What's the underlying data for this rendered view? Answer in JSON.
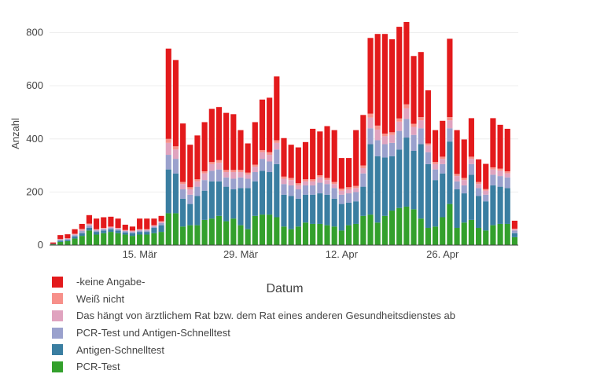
{
  "chart_data": {
    "type": "bar",
    "stacked": true,
    "xlabel": "Datum",
    "ylabel": "Anzahl",
    "ylim": [
      0,
      840
    ],
    "yticks": [
      0,
      200,
      400,
      600,
      800
    ],
    "xtick_labels": [
      {
        "index": 12,
        "label": "15. Mär"
      },
      {
        "index": 26,
        "label": "29. Mär"
      },
      {
        "index": 40,
        "label": "12. Apr"
      },
      {
        "index": 54,
        "label": "26. Apr"
      }
    ],
    "categories": [
      "2021-03-03",
      "2021-03-04",
      "2021-03-05",
      "2021-03-06",
      "2021-03-07",
      "2021-03-08",
      "2021-03-09",
      "2021-03-10",
      "2021-03-11",
      "2021-03-12",
      "2021-03-13",
      "2021-03-14",
      "2021-03-15",
      "2021-03-16",
      "2021-03-17",
      "2021-03-18",
      "2021-03-19",
      "2021-03-20",
      "2021-03-21",
      "2021-03-22",
      "2021-03-23",
      "2021-03-24",
      "2021-03-25",
      "2021-03-26",
      "2021-03-27",
      "2021-03-28",
      "2021-03-29",
      "2021-03-30",
      "2021-03-31",
      "2021-04-01",
      "2021-04-02",
      "2021-04-03",
      "2021-04-04",
      "2021-04-05",
      "2021-04-06",
      "2021-04-07",
      "2021-04-08",
      "2021-04-09",
      "2021-04-10",
      "2021-04-11",
      "2021-04-12",
      "2021-04-13",
      "2021-04-14",
      "2021-04-15",
      "2021-04-16",
      "2021-04-17",
      "2021-04-18",
      "2021-04-19",
      "2021-04-20",
      "2021-04-21",
      "2021-04-22",
      "2021-04-23",
      "2021-04-24",
      "2021-04-25",
      "2021-04-26",
      "2021-04-27",
      "2021-04-28",
      "2021-04-29",
      "2021-04-30",
      "2021-05-01",
      "2021-05-02",
      "2021-05-03",
      "2021-05-04",
      "2021-05-05",
      "2021-05-06"
    ],
    "series": [
      {
        "name": "PCR-Test",
        "color": "#33a02c",
        "values": [
          3,
          12,
          15,
          25,
          35,
          55,
          40,
          45,
          50,
          45,
          40,
          35,
          40,
          40,
          45,
          50,
          120,
          120,
          70,
          75,
          75,
          95,
          100,
          110,
          90,
          100,
          75,
          60,
          110,
          115,
          115,
          105,
          70,
          60,
          70,
          85,
          80,
          80,
          75,
          70,
          55,
          75,
          80,
          110,
          115,
          85,
          110,
          130,
          140,
          145,
          135,
          100,
          65,
          70,
          105,
          155,
          65,
          85,
          95,
          65,
          55,
          75,
          80,
          80,
          30
        ]
      },
      {
        "name": "Antigen-Schnelltest",
        "color": "#3a7ea1",
        "values": [
          2,
          5,
          5,
          8,
          10,
          10,
          10,
          10,
          10,
          10,
          8,
          10,
          10,
          10,
          20,
          25,
          165,
          150,
          105,
          80,
          110,
          110,
          140,
          130,
          130,
          110,
          140,
          155,
          130,
          165,
          160,
          200,
          120,
          125,
          105,
          105,
          110,
          115,
          115,
          105,
          100,
          85,
          85,
          110,
          265,
          250,
          220,
          205,
          220,
          260,
          220,
          280,
          240,
          175,
          165,
          235,
          145,
          110,
          170,
          120,
          110,
          150,
          140,
          135,
          15
        ]
      },
      {
        "name": "PCR-Test und Antigen-Schnelltest",
        "color": "#9aa1cd",
        "values": [
          0,
          3,
          3,
          5,
          8,
          8,
          5,
          5,
          5,
          5,
          5,
          5,
          5,
          5,
          5,
          8,
          55,
          55,
          35,
          35,
          35,
          40,
          40,
          45,
          35,
          40,
          40,
          35,
          35,
          45,
          40,
          55,
          40,
          40,
          35,
          35,
          35,
          40,
          40,
          40,
          35,
          35,
          35,
          50,
          60,
          60,
          50,
          50,
          70,
          70,
          60,
          60,
          45,
          40,
          35,
          50,
          30,
          30,
          40,
          30,
          25,
          40,
          40,
          40,
          10
        ]
      },
      {
        "name": "Das hängt von ärztlichem Rat bzw. dem Rat eines anderen Gesundheitsdienstes ab",
        "color": "#e0a3bf",
        "values": [
          0,
          2,
          2,
          3,
          5,
          5,
          3,
          3,
          3,
          3,
          2,
          3,
          3,
          3,
          3,
          5,
          45,
          35,
          20,
          20,
          20,
          25,
          25,
          25,
          20,
          25,
          20,
          15,
          20,
          25,
          25,
          25,
          20,
          20,
          15,
          15,
          15,
          20,
          15,
          15,
          15,
          15,
          15,
          20,
          40,
          40,
          30,
          30,
          35,
          40,
          30,
          30,
          25,
          20,
          20,
          30,
          20,
          20,
          20,
          15,
          15,
          20,
          20,
          15,
          5
        ]
      },
      {
        "name": "Weiß nicht",
        "color": "#f7908a",
        "values": [
          0,
          1,
          1,
          2,
          3,
          3,
          2,
          2,
          2,
          2,
          2,
          2,
          2,
          2,
          2,
          2,
          15,
          12,
          8,
          8,
          8,
          8,
          8,
          10,
          8,
          8,
          8,
          8,
          8,
          8,
          10,
          10,
          8,
          8,
          8,
          8,
          8,
          8,
          8,
          8,
          8,
          8,
          8,
          10,
          15,
          15,
          10,
          10,
          12,
          15,
          12,
          12,
          8,
          8,
          8,
          12,
          8,
          8,
          8,
          8,
          6,
          8,
          8,
          8,
          2
        ]
      },
      {
        "name": "-keine Angabe-",
        "color": "#e31a1c",
        "values": [
          5,
          15,
          15,
          17,
          19,
          32,
          40,
          40,
          37,
          35,
          20,
          15,
          40,
          40,
          25,
          20,
          340,
          325,
          220,
          160,
          165,
          185,
          200,
          200,
          215,
          210,
          150,
          110,
          160,
          190,
          205,
          240,
          145,
          125,
          135,
          140,
          190,
          165,
          195,
          195,
          115,
          110,
          210,
          190,
          285,
          345,
          375,
          350,
          345,
          310,
          255,
          245,
          200,
          120,
          135,
          295,
          165,
          145,
          145,
          85,
          95,
          185,
          165,
          160,
          30
        ]
      }
    ]
  }
}
